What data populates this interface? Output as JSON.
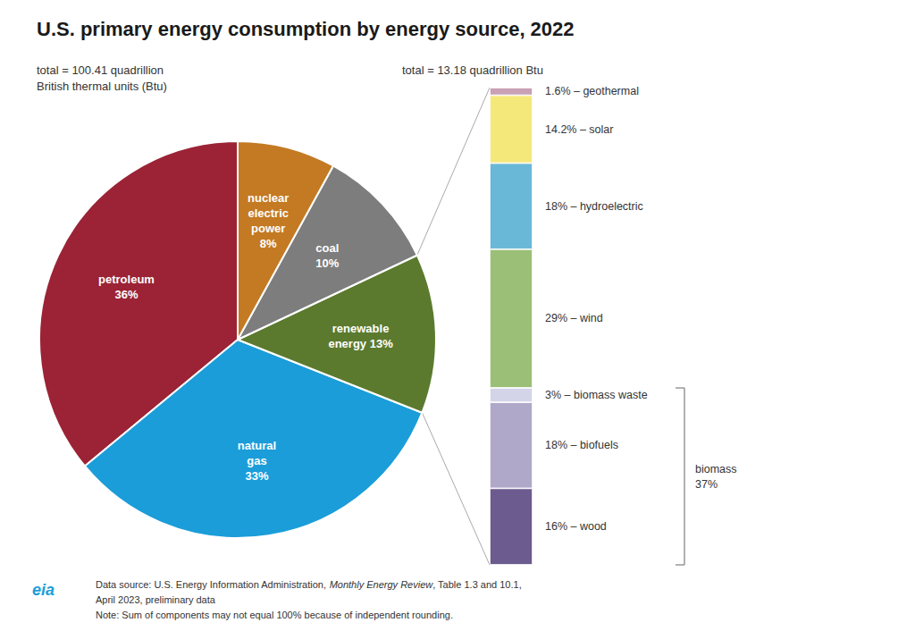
{
  "chart_data": [
    {
      "type": "pie",
      "title": "U.S. primary energy consumption by energy source, 2022",
      "subtitle": "total = 100.41 quadrillion\nBritish thermal units (Btu)",
      "values": [
        36,
        33,
        13,
        10,
        8
      ],
      "value_labels": [
        "petroleum\n36%",
        "natural\ngas\n33%",
        "renewable\nenergy 13%",
        "coal\n10%",
        "nuclear\nelectric\npower\n8%"
      ],
      "colors": [
        "#9b2335",
        "#1b9dd9",
        "#5b7a2e",
        "#7d7d7d",
        "#c47a22"
      ],
      "data_labels": true,
      "logo": {
        "text": "eia",
        "color": "#1b9dd9"
      },
      "footnotes": [
        [
          {
            "text": "Data source: U.S. Energy Information Administration, "
          },
          {
            "text": "Monthly Energy Review",
            "style": "italic"
          },
          {
            "text": ", Table 1.3 and 10.1,"
          }
        ],
        [
          {
            "text": "April 2023, preliminary data"
          }
        ],
        [
          {
            "text": "Note: Sum of components may not equal 100% because of independent rounding."
          }
        ]
      ]
    },
    {
      "type": "bar",
      "stacked": true,
      "subtitle": "total = 13.18 quadrillion Btu",
      "categories": [
        null
      ],
      "ylim": [
        0,
        99.8
      ],
      "tick_labels": false,
      "grid": false,
      "series": [
        {
          "name": "16% – wood",
          "color": "#6b5b8e",
          "values": [
            16
          ]
        },
        {
          "name": "18% – biofuels",
          "color": "#b0a8c8",
          "values": [
            18
          ]
        },
        {
          "name": "3% – biomass waste",
          "color": "#d4d4e8",
          "values": [
            3
          ]
        },
        {
          "name": "29% – wind",
          "color": "#9bbf76",
          "values": [
            29
          ]
        },
        {
          "name": "18% – hydroelectric",
          "color": "#6ab8d8",
          "values": [
            18
          ]
        },
        {
          "name": "14.2% – solar",
          "color": "#f5e87b",
          "values": [
            14.2
          ]
        },
        {
          "name": "1.6% – geothermal",
          "color": "#c9a0b4",
          "values": [
            1.6
          ]
        }
      ],
      "annotations": [
        {
          "text": "biomass\n37%",
          "from": 0,
          "to": 37
        }
      ]
    }
  ]
}
